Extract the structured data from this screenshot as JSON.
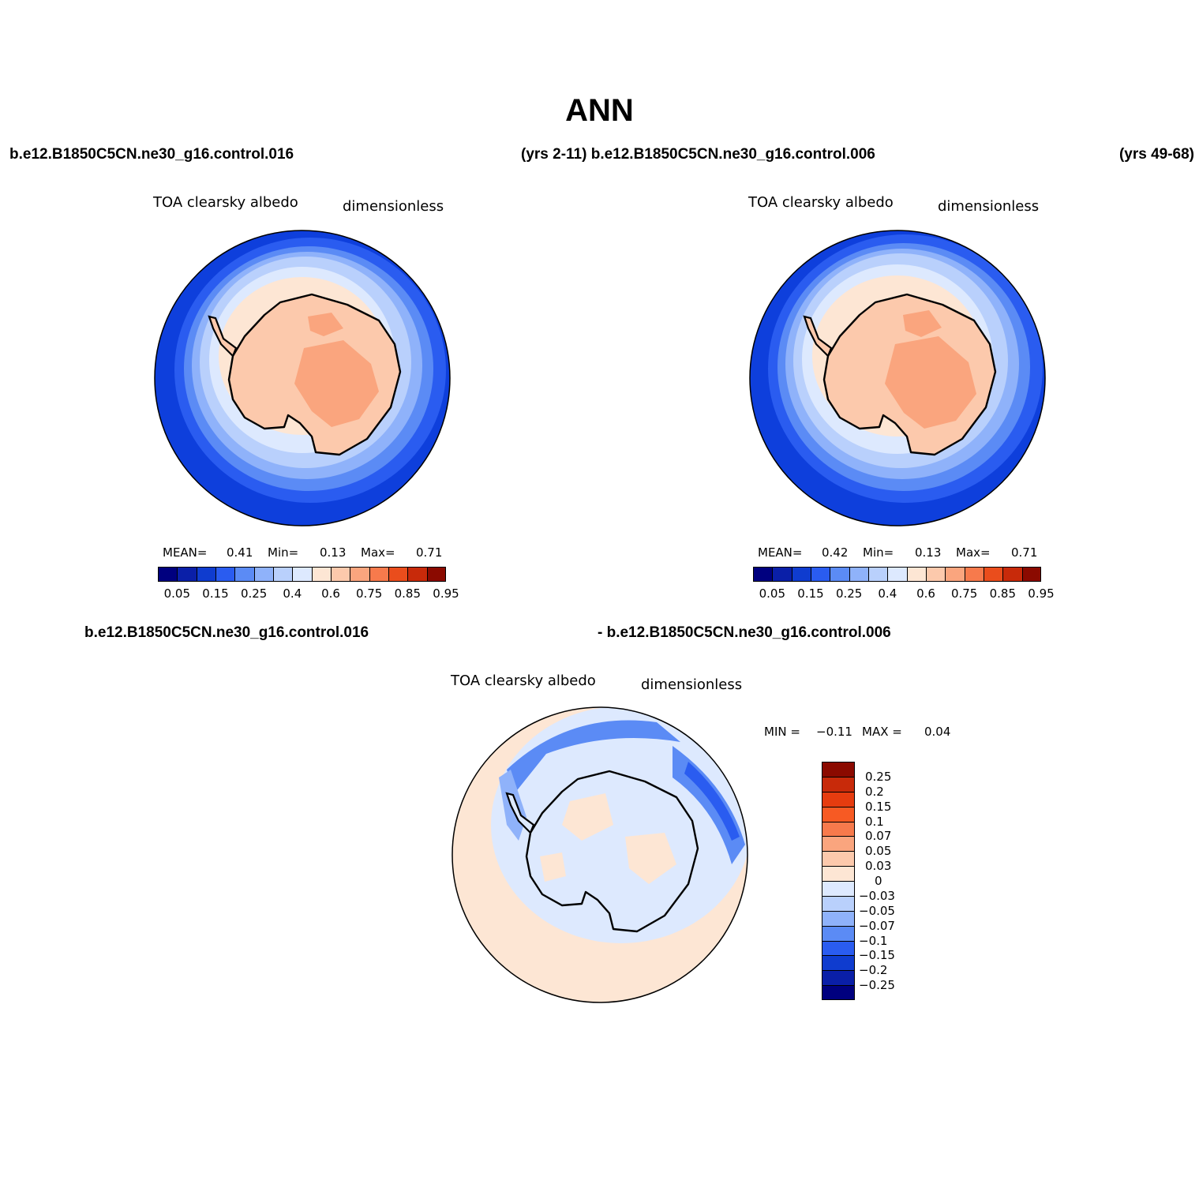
{
  "title": "ANN",
  "header": {
    "left": "b.e12.B1850C5CN.ne30_g16.control.016",
    "center": "(yrs 2-11) b.e12.B1850C5CN.ne30_g16.control.006",
    "right": "(yrs 49-68)"
  },
  "diff_header": {
    "left": "b.e12.B1850C5CN.ne30_g16.control.016",
    "right": "- b.e12.B1850C5CN.ne30_g16.control.006"
  },
  "panels": [
    {
      "variable": "TOA clearsky albedo",
      "units": "dimensionless",
      "mean_label": "MEAN=",
      "mean": "0.41",
      "min_label": "Min=",
      "min": "0.13",
      "max_label": "Max=",
      "max": "0.71"
    },
    {
      "variable": "TOA clearsky albedo",
      "units": "dimensionless",
      "mean_label": "MEAN=",
      "mean": "0.42",
      "min_label": "Min=",
      "min": "0.13",
      "max_label": "Max=",
      "max": "0.71"
    }
  ],
  "diff_panel": {
    "variable": "TOA clearsky albedo",
    "units": "dimensionless",
    "min_label": "MIN =",
    "min": "−0.11",
    "max_label": "MAX =",
    "max": "0.04"
  },
  "colorbar": {
    "colors": [
      "#00007f",
      "#0a1fa8",
      "#0f3ccf",
      "#2a5cf0",
      "#5b8bf5",
      "#8fb2fa",
      "#b9d0fc",
      "#dde9fe",
      "#fde6d4",
      "#fcc9ac",
      "#faa57e",
      "#f77a4c",
      "#ea4d1c",
      "#c82a0a",
      "#8b0a00"
    ],
    "tick_labels": [
      "0.05",
      "0.15",
      "0.25",
      "0.4",
      "0.6",
      "0.75",
      "0.85",
      "0.95"
    ]
  },
  "diff_colorbar": {
    "colors": [
      "#8b0a00",
      "#c82a0a",
      "#e63c0f",
      "#f75a23",
      "#f77a4c",
      "#faa57e",
      "#fcc9ac",
      "#fde6d4",
      "#dde9fe",
      "#b9d0fc",
      "#8fb2fa",
      "#5b8bf5",
      "#2a5cf0",
      "#0f3ccf",
      "#0a1fa8",
      "#00007f"
    ],
    "tick_labels": [
      "0.25",
      "0.2",
      "0.15",
      "0.1",
      "0.07",
      "0.05",
      "0.03",
      "0",
      "−0.03",
      "−0.05",
      "−0.07",
      "−0.1",
      "−0.15",
      "−0.2",
      "−0.25"
    ]
  },
  "colors": {
    "ocean_outer": "#0e3fdc",
    "ocean_mid": "#2a5cf0",
    "sea_ice_light": "#b9d0fc",
    "land_peach": "#fcc9ac",
    "land_dark": "#faa57e",
    "diff_background": "#fde6d4",
    "diff_light_blue": "#dde9fe"
  }
}
